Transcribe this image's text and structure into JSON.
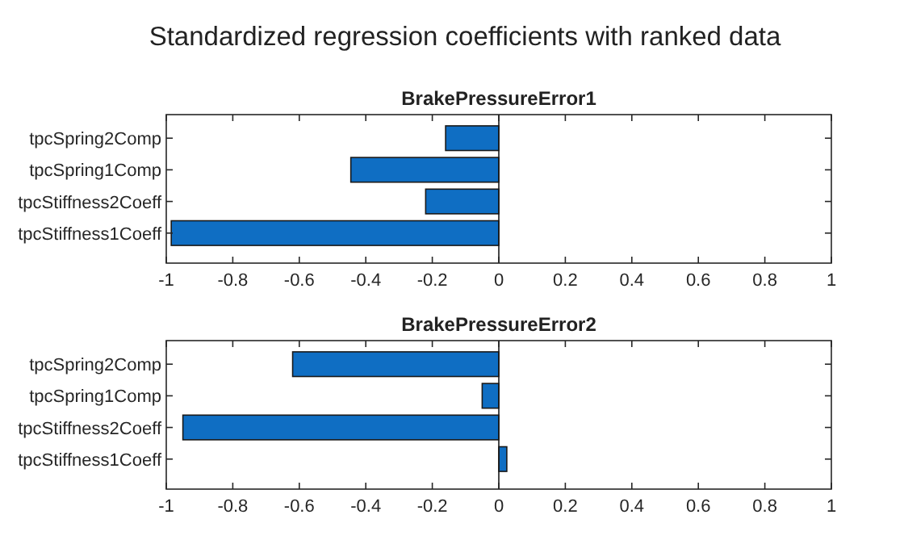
{
  "chart_data": [
    {
      "type": "bar",
      "orientation": "horizontal",
      "title": "Standardized regression coefficients with ranked data",
      "subtitle": "BrakePressureError1",
      "categories": [
        "tpcSpring2Comp",
        "tpcSpring1Comp",
        "tpcStiffness2Coeff",
        "tpcStiffness1Coeff"
      ],
      "values": [
        -0.16,
        -0.445,
        -0.22,
        -0.985
      ],
      "color": "#0f6ec3",
      "xlim": [
        -1,
        1
      ],
      "xticks": [
        -1,
        -0.8,
        -0.6,
        -0.4,
        -0.2,
        0,
        0.2,
        0.4,
        0.6,
        0.8,
        1
      ]
    },
    {
      "type": "bar",
      "orientation": "horizontal",
      "subtitle": "BrakePressureError2",
      "categories": [
        "tpcSpring2Comp",
        "tpcSpring1Comp",
        "tpcStiffness2Coeff",
        "tpcStiffness1Coeff"
      ],
      "values": [
        -0.62,
        -0.05,
        -0.95,
        0.024
      ],
      "color": "#0f6ec3",
      "xlim": [
        -1,
        1
      ],
      "xticks": [
        -1,
        -0.8,
        -0.6,
        -0.4,
        -0.2,
        0,
        0.2,
        0.4,
        0.6,
        0.8,
        1
      ]
    }
  ]
}
